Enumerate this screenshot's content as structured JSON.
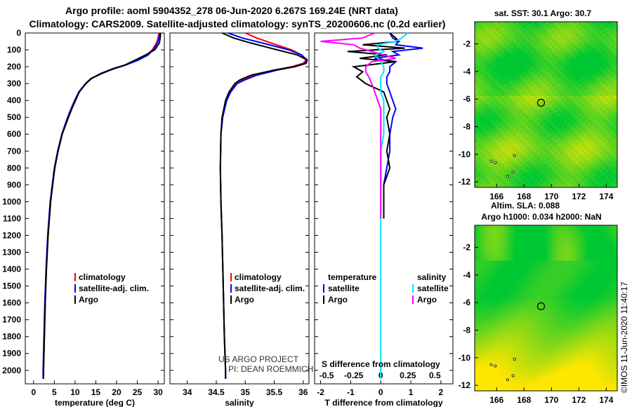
{
  "header": {
    "title_line1": "Argo profile: aoml 5904352_278 06-Jun-2020 6.267S 169.24E (NRT data)",
    "title_line2": "Climatology: CARS2009. Satellite-adjusted climatology: synTS_20200606.nc (0.2d earlier)"
  },
  "colors": {
    "climatology": "#ff0000",
    "satellite": "#0000ff",
    "argo": "#000000",
    "salinity_satellite": "#00e5ff",
    "salinity_argo": "#ff00ff",
    "map_warm": "#ffe600",
    "map_cool": "#00c832"
  },
  "depth_ticks": [
    "0",
    "100",
    "200",
    "300",
    "400",
    "500",
    "600",
    "700",
    "800",
    "900",
    "1000",
    "1100",
    "1200",
    "1300",
    "1400",
    "1500",
    "1600",
    "1700",
    "1800",
    "1900",
    "2000"
  ],
  "chart_data": [
    {
      "type": "line",
      "panel": "temperature",
      "xlabel": "temperature (deg C)",
      "ylabel": "depth",
      "xlim": [
        -2,
        31.5
      ],
      "ylim": [
        2080,
        0
      ],
      "xticks": [
        "0",
        "5",
        "10",
        "15",
        "20",
        "25",
        "30"
      ],
      "xtick_values": [
        0,
        5,
        10,
        15,
        20,
        25,
        30
      ],
      "legend": [
        "climatology",
        "satellite-adj. clim.",
        "Argo"
      ],
      "depth": [
        0,
        30,
        60,
        100,
        130,
        160,
        190,
        210,
        240,
        270,
        300,
        350,
        400,
        450,
        500,
        600,
        700,
        800,
        900,
        1000,
        1200,
        1400,
        1600,
        1800,
        2000,
        2050
      ],
      "series": [
        {
          "name": "climatology",
          "color_key": "climatology",
          "values": [
            30.2,
            30.0,
            29.6,
            28.6,
            27.3,
            25.0,
            22.0,
            19.5,
            16.5,
            14.0,
            12.6,
            11.0,
            10.0,
            9.1,
            8.3,
            6.9,
            5.9,
            5.1,
            4.6,
            4.1,
            3.5,
            3.1,
            2.8,
            2.6,
            2.4,
            2.4
          ]
        },
        {
          "name": "satellite-adj. clim.",
          "color_key": "satellite",
          "values": [
            30.4,
            30.2,
            29.8,
            28.8,
            27.6,
            25.3,
            22.2,
            19.6,
            16.4,
            13.8,
            12.5,
            10.9,
            9.9,
            9.0,
            8.2,
            6.8,
            5.8,
            5.0,
            4.5,
            4.0,
            3.4,
            3.0,
            2.7,
            2.5,
            2.3,
            2.3
          ]
        },
        {
          "name": "Argo",
          "color_key": "argo",
          "values": [
            30.6,
            30.5,
            30.3,
            29.2,
            27.0,
            24.5,
            22.0,
            19.3,
            16.2,
            13.9,
            12.6,
            11.0,
            10.1,
            9.2,
            8.4,
            6.9,
            5.9,
            5.1,
            4.6,
            4.1,
            3.5,
            3.1,
            2.8,
            2.6,
            2.4,
            2.4
          ]
        }
      ]
    },
    {
      "type": "line",
      "panel": "salinity",
      "xlabel": "salinity",
      "ylabel": "depth",
      "xlim": [
        33.7,
        36.1
      ],
      "ylim": [
        2080,
        0
      ],
      "xticks": [
        "34",
        "34.5",
        "35",
        "35.5",
        "36"
      ],
      "xtick_values": [
        34,
        34.5,
        35,
        35.5,
        36
      ],
      "legend": [
        "climatology",
        "satellite-adj. clim.",
        "Argo"
      ],
      "annotation_line1": "US ARGO PROJECT",
      "annotation_line2": "PI: DEAN ROEMMICH",
      "depth": [
        0,
        30,
        60,
        100,
        130,
        160,
        180,
        200,
        220,
        250,
        280,
        300,
        350,
        400,
        500,
        600,
        800,
        1000,
        1200,
        1500,
        1800,
        2000,
        2050
      ],
      "series": [
        {
          "name": "climatology",
          "color_key": "climatology",
          "values": [
            35.0,
            35.2,
            35.45,
            35.8,
            35.97,
            36.05,
            36.0,
            35.8,
            35.5,
            35.15,
            34.95,
            34.85,
            34.74,
            34.67,
            34.61,
            34.58,
            34.57,
            34.58,
            34.6,
            34.62,
            34.64,
            34.66,
            34.66
          ]
        },
        {
          "name": "satellite-adj. clim.",
          "color_key": "satellite",
          "values": [
            34.7,
            34.95,
            35.3,
            35.75,
            35.97,
            36.07,
            36.03,
            35.85,
            35.55,
            35.2,
            34.98,
            34.86,
            34.75,
            34.68,
            34.61,
            34.58,
            34.57,
            34.58,
            34.6,
            34.62,
            34.64,
            34.66,
            34.66
          ]
        },
        {
          "name": "Argo",
          "color_key": "argo",
          "values": [
            34.6,
            34.8,
            35.1,
            35.55,
            35.9,
            36.07,
            36.05,
            35.85,
            35.5,
            35.1,
            34.9,
            34.82,
            34.72,
            34.66,
            34.6,
            34.58,
            34.57,
            34.58,
            34.6,
            34.62,
            34.64,
            34.66,
            34.66
          ]
        }
      ]
    },
    {
      "type": "line",
      "panel": "difference",
      "xlabel": "T difference from climatology",
      "xlabel_top": "S difference from climatology",
      "ylabel": "depth",
      "xlim": [
        -2.2,
        2.4
      ],
      "ylim": [
        2080,
        0
      ],
      "xticks": [
        "-2",
        "-1",
        "0",
        "1",
        "2"
      ],
      "xtick_values": [
        -2,
        -1,
        0,
        1,
        2
      ],
      "xticks_top": [
        "-0.5",
        "-0.25",
        "0",
        "0.25",
        "0.5"
      ],
      "xtick_top_values": [
        -1.8,
        -0.9,
        0,
        0.9,
        1.8
      ],
      "legend_titles": [
        "temperature",
        "salinity"
      ],
      "legend_left": [
        "satellite",
        "Argo"
      ],
      "legend_right": [
        "satellite",
        "Argo"
      ],
      "depth": [
        0,
        30,
        50,
        70,
        90,
        110,
        130,
        150,
        170,
        200,
        230,
        260,
        300,
        350,
        400,
        450,
        500,
        600,
        700,
        800,
        900,
        1000,
        1100
      ],
      "series": [
        {
          "name": "T satellite",
          "color_key": "satellite",
          "values": [
            0.3,
            0.4,
            0.6,
            0.5,
            1.4,
            0.4,
            0.6,
            -0.2,
            0.5,
            0.3,
            0.3,
            0.2,
            0.2,
            0.3,
            0.4,
            0.5,
            0.4,
            0.3,
            0.3,
            0.2,
            0.1,
            0.1,
            0.1
          ]
        },
        {
          "name": "T Argo",
          "color_key": "argo",
          "values": [
            0.3,
            0.5,
            0.6,
            -0.6,
            0.8,
            -1.1,
            0.2,
            -0.7,
            0.5,
            -0.9,
            -0.6,
            -0.8,
            -0.5,
            0.1,
            0.2,
            0.3,
            0.2,
            0.3,
            0.2,
            0.3,
            0.1,
            0.1,
            0.1
          ]
        },
        {
          "name": "S satellite",
          "color_key": "salinity_satellite",
          "values": [
            0.9,
            0.7,
            0.5,
            -0.1,
            -0.1,
            0.1,
            -0.2,
            -0.1,
            0.0,
            0.1,
            0.1,
            0.0,
            0.0,
            0.0,
            0.1,
            0.1,
            0.1,
            0.1,
            0.0,
            0.0,
            0.0,
            0.0,
            0.0
          ]
        },
        {
          "name": "S Argo",
          "color_key": "salinity_argo",
          "values": [
            -0.2,
            -0.6,
            -2.0,
            -0.9,
            -0.7,
            -0.3,
            0.1,
            0.5,
            -0.3,
            -0.5,
            -0.5,
            -0.4,
            -0.3,
            -0.2,
            -0.1,
            0.0,
            0.0,
            0.0,
            0.0,
            0.0,
            0.0,
            0.0,
            0.0
          ]
        }
      ]
    },
    {
      "type": "heatmap",
      "panel": "sst_map",
      "title": "sat. SST: 30.1 Argo: 30.7",
      "xticks": [
        "166",
        "168",
        "170",
        "172",
        "174"
      ],
      "xtick_values": [
        166,
        168,
        170,
        172,
        174
      ],
      "yticks": [
        "-2",
        "-4",
        "-6",
        "-8",
        "-10",
        "-12"
      ],
      "ytick_values": [
        -2,
        -4,
        -6,
        -8,
        -10,
        -12
      ],
      "xlim": [
        164.4,
        174.8
      ],
      "ylim": [
        -12.4,
        -0.4
      ],
      "marker": [
        169.24,
        -6.267
      ]
    },
    {
      "type": "heatmap",
      "panel": "sla_map",
      "title_line1": "Altim. SLA: 0.088",
      "title_line2": "Argo h1000: 0.034 h2000: NaN",
      "xticks": [
        "166",
        "168",
        "170",
        "172",
        "174"
      ],
      "xtick_values": [
        166,
        168,
        170,
        172,
        174
      ],
      "yticks": [
        "-2",
        "-4",
        "-6",
        "-8",
        "-10",
        "-12"
      ],
      "ytick_values": [
        -2,
        -4,
        -6,
        -8,
        -10,
        -12
      ],
      "xlim": [
        164.4,
        174.8
      ],
      "ylim": [
        -12.4,
        -0.4
      ],
      "marker": [
        169.24,
        -6.267
      ]
    }
  ],
  "credit": "©IMOS 11-Jun-2020 11:40:17"
}
